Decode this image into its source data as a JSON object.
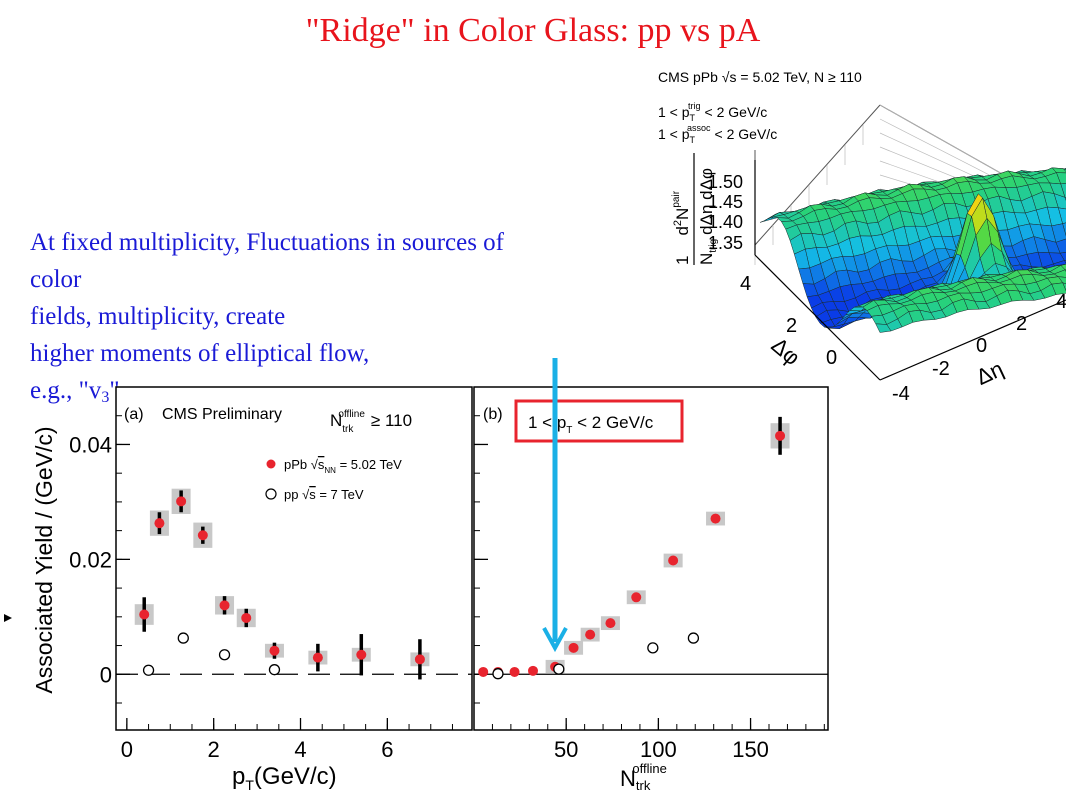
{
  "title": "\"Ridge\" in Color Glass: pp vs pA",
  "body_text": {
    "line1a": "At fixed multiplicity, Fluctuations in sources of",
    "line1b": "color",
    "line2": "fields, multiplicity, create",
    "line3": "higher moments of elliptical flow,",
    "line4_prefix": "e.g., \"v",
    "line4_sub": "3",
    "line4_suffix": "\""
  },
  "colors": {
    "title": "#e8141c",
    "body_text": "#1a1ad6",
    "ppb_marker": "#e8242e",
    "arrow": "#1ab0e6",
    "highlight_box": "#e8242e",
    "syst_box": "#c8c8c8"
  },
  "inset": {
    "header": "CMS pPb √s = 5.02 TeV, N ≥ 110",
    "cut_trig_a": "1 < p",
    "cut_trig_sup": "trig",
    "cut_trig_sub": "T",
    "cut_trig_b": "< 2 GeV/c",
    "cut_assoc_a": "1 < p",
    "cut_assoc_sup": "assoc",
    "cut_assoc_sub": "T",
    "cut_assoc_b": "< 2 GeV/c",
    "zlabel_num_a": "1",
    "zlabel_num_b": "d",
    "zlabel_num_c": "2",
    "zlabel_num_d": "N",
    "zlabel_num_e": "pair",
    "zlabel_den_a": "N",
    "zlabel_den_b": "trig",
    "zlabel_den_c": "dΔη dΔφ",
    "z_ticks": [
      "1.50",
      "1.45",
      "1.40",
      "1.35"
    ],
    "phi_label": "Δφ",
    "eta_label": "Δη",
    "phi_ticks": [
      "4",
      "2",
      "0"
    ],
    "eta_ticks": [
      "4",
      "2",
      "0",
      "-2",
      "-4"
    ]
  },
  "chart_data": [
    {
      "panel": "a",
      "type": "scatter",
      "panel_label": "(a)",
      "label": "CMS Preliminary",
      "cut": "N",
      "cut_sup": "offline",
      "cut_sub": "trk",
      "cut_value": "≥ 110",
      "xlabel": "p",
      "xlabel_sub": "T",
      "xlabel_suffix": "(GeV/c)",
      "ylabel": "Associated Yield / (GeV/c)",
      "xlim": [
        -0.25,
        7.95
      ],
      "ylim": [
        -0.0097,
        0.05
      ],
      "x_ticks": [
        0,
        2,
        4,
        6
      ],
      "x_tick_labels": [
        "0",
        "2",
        "4",
        "6"
      ],
      "y_ticks": [
        0,
        0.02,
        0.04
      ],
      "y_tick_labels": [
        "0",
        "0.02",
        "0.04"
      ],
      "series": [
        {
          "name": "pPb √s_NN = 5.02 TeV",
          "legend_a": "pPb √",
          "legend_b": "s",
          "legend_sub": "NN",
          "legend_c": " = 5.02 TeV",
          "marker": "filled-circle",
          "points": [
            {
              "x": 0.4,
              "y": 0.0104,
              "err": 0.003,
              "syst": 0.0018
            },
            {
              "x": 0.75,
              "y": 0.0263,
              "err": 0.0019,
              "syst": 0.0022
            },
            {
              "x": 1.25,
              "y": 0.0301,
              "err": 0.0019,
              "syst": 0.0022
            },
            {
              "x": 1.75,
              "y": 0.0242,
              "err": 0.0015,
              "syst": 0.0022
            },
            {
              "x": 2.25,
              "y": 0.012,
              "err": 0.0016,
              "syst": 0.0016
            },
            {
              "x": 2.75,
              "y": 0.0098,
              "err": 0.0016,
              "syst": 0.0016
            },
            {
              "x": 3.4,
              "y": 0.0041,
              "err": 0.0014,
              "syst": 0.0012
            },
            {
              "x": 4.4,
              "y": 0.0029,
              "err": 0.0024,
              "syst": 0.0012
            },
            {
              "x": 5.4,
              "y": 0.0034,
              "err": 0.0036,
              "syst": 0.0012
            },
            {
              "x": 6.75,
              "y": 0.0026,
              "err": 0.0035,
              "syst": 0.0012
            }
          ]
        },
        {
          "name": "pp √s = 7 TeV",
          "legend_a": "pp √",
          "legend_b": "s",
          "legend_sub": "",
          "legend_c": " = 7 TeV",
          "marker": "open-circle",
          "points": [
            {
              "x": 0.5,
              "y": 0.0007
            },
            {
              "x": 1.3,
              "y": 0.0063
            },
            {
              "x": 2.25,
              "y": 0.0034
            },
            {
              "x": 3.4,
              "y": 0.0008
            }
          ]
        }
      ]
    },
    {
      "panel": "b",
      "type": "scatter",
      "panel_label": "(b)",
      "highlight_a": "1 < p",
      "highlight_sub": "T",
      "highlight_b": " < 2 GeV/c",
      "xlabel": "N",
      "xlabel_sup": "offline",
      "xlabel_sub": "trk",
      "xlim": [
        0,
        192
      ],
      "ylim": [
        -0.0097,
        0.05
      ],
      "x_ticks": [
        50,
        100,
        150
      ],
      "x_tick_labels": [
        "50",
        "100",
        "150"
      ],
      "series": [
        {
          "name": "pPb",
          "marker": "filled-circle",
          "points": [
            {
              "x": 5,
              "y": 0.0004
            },
            {
              "x": 13,
              "y": 0.0004
            },
            {
              "x": 22,
              "y": 0.0004
            },
            {
              "x": 32,
              "y": 0.0006
            },
            {
              "x": 44,
              "y": 0.0013
            },
            {
              "x": 54,
              "y": 0.0046
            },
            {
              "x": 63,
              "y": 0.0069
            },
            {
              "x": 74,
              "y": 0.0089
            },
            {
              "x": 88,
              "y": 0.0134
            },
            {
              "x": 108,
              "y": 0.0198
            },
            {
              "x": 131,
              "y": 0.0271
            },
            {
              "x": 166,
              "y": 0.0415
            }
          ],
          "syst_from_index": 4,
          "syst": 0.0012,
          "last_err": 0.0033,
          "last_syst": 0.0022
        },
        {
          "name": "pp",
          "marker": "open-circle",
          "points": [
            {
              "x": 13,
              "y": 0.0001
            },
            {
              "x": 46,
              "y": 0.0009
            },
            {
              "x": 97,
              "y": 0.0046
            },
            {
              "x": 119,
              "y": 0.0063
            }
          ]
        }
      ]
    }
  ]
}
